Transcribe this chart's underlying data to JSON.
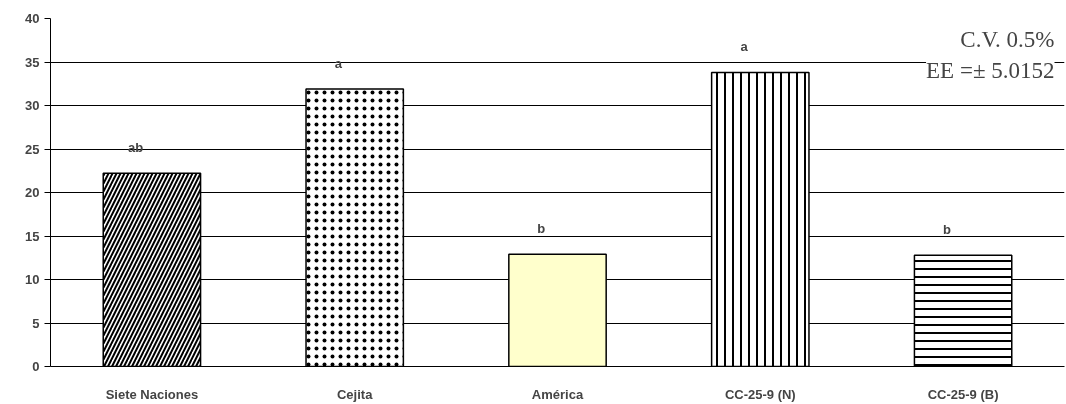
{
  "chart_data": {
    "type": "bar",
    "categories": [
      "Siete Naciones",
      "Cejita",
      "América",
      "CC-25-9 (N)",
      "CC-25-9 (B)"
    ],
    "values": [
      22.2,
      31.9,
      12.9,
      33.8,
      12.8
    ],
    "colors": [
      "#ffffff",
      "#ffffff",
      "#ffffcc",
      "#ffffff",
      "#ffffff"
    ],
    "ylim": [
      0,
      40
    ],
    "yticks": [
      0,
      5,
      10,
      15,
      20,
      25,
      30,
      35,
      40
    ],
    "grid": "y",
    "annotations": [
      "ab",
      "a",
      "b",
      "a",
      "b",
      "C.V. 0.5%",
      "EE =± 5.0152"
    ]
  }
}
